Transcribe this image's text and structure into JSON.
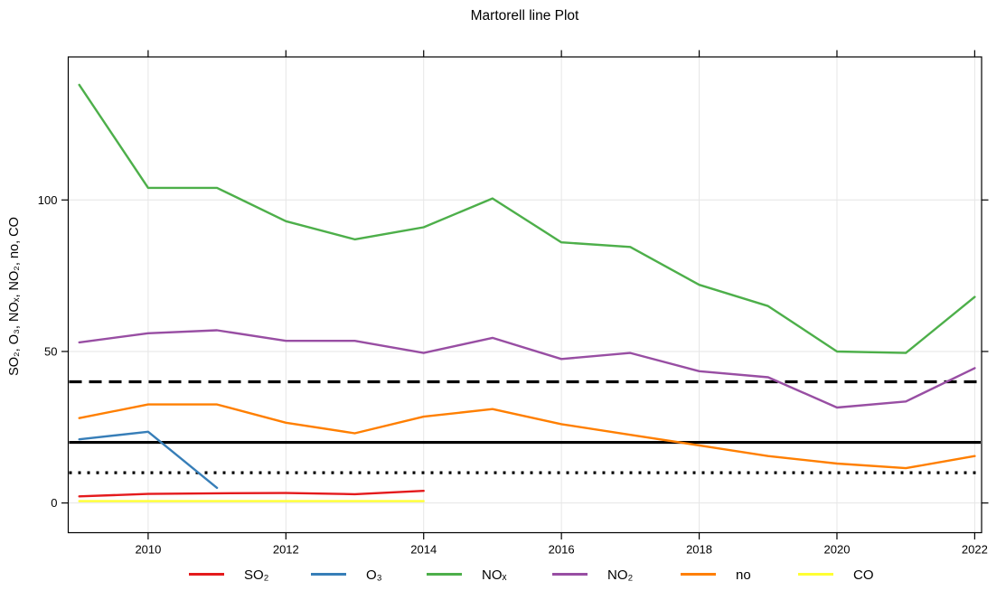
{
  "title": "Martorell line Plot",
  "y_axis_label": "SO₂, O₃, NOₓ, NO₂, no, CO",
  "chart_data": {
    "type": "line",
    "title": "Martorell line Plot",
    "xlabel": "",
    "ylabel": "SO₂, O₃, NOₓ, NO₂, no, CO",
    "x": [
      2009,
      2010,
      2011,
      2012,
      2013,
      2014,
      2015,
      2016,
      2017,
      2018,
      2019,
      2020,
      2021,
      2022
    ],
    "series": [
      {
        "name": "SO₂",
        "color": "#E41A1C",
        "values": [
          2.2,
          3.0,
          3.2,
          3.3,
          2.9,
          4.0,
          null,
          null,
          null,
          null,
          null,
          null,
          null,
          null
        ]
      },
      {
        "name": "O₃",
        "color": "#377EB8",
        "values": [
          21.0,
          23.5,
          5.0,
          null,
          null,
          null,
          null,
          null,
          null,
          null,
          null,
          null,
          null,
          null
        ]
      },
      {
        "name": "NOₓ",
        "color": "#4DAF4A",
        "values": [
          138,
          104,
          104,
          93,
          87,
          91,
          100.5,
          86,
          84.5,
          72,
          65,
          50,
          49.5,
          68
        ]
      },
      {
        "name": "NO₂",
        "color": "#984EA3",
        "values": [
          53,
          56,
          57,
          53.5,
          53.5,
          49.5,
          54.5,
          47.5,
          49.5,
          43.5,
          41.5,
          31.5,
          33.5,
          44.5
        ]
      },
      {
        "name": "no",
        "color": "#FF7F00",
        "values": [
          28,
          32.5,
          32.5,
          26.5,
          23,
          28.5,
          31,
          26,
          22.5,
          19,
          15.5,
          13,
          11.5,
          15.5
        ]
      },
      {
        "name": "CO",
        "color": "#FFFF33",
        "values": [
          0.6,
          0.6,
          0.6,
          0.6,
          0.6,
          0.6,
          null,
          null,
          null,
          null,
          null,
          null,
          null,
          null
        ]
      }
    ],
    "reference_lines": [
      {
        "value": 40,
        "style": "dashed",
        "color": "#000000"
      },
      {
        "value": 20,
        "style": "solid",
        "color": "#000000"
      },
      {
        "value": 10,
        "style": "dotted",
        "color": "#000000"
      }
    ],
    "x_ticks": [
      2010,
      2012,
      2014,
      2016,
      2018,
      2020,
      2022
    ],
    "y_ticks": [
      0,
      50,
      100
    ],
    "xlim": [
      2008.84,
      2022.1
    ],
    "ylim": [
      -9.8,
      147.2
    ],
    "grid": true,
    "gridline_color": "#e6e6e6",
    "axis_color": "#000000",
    "legend_position": "bottom"
  }
}
